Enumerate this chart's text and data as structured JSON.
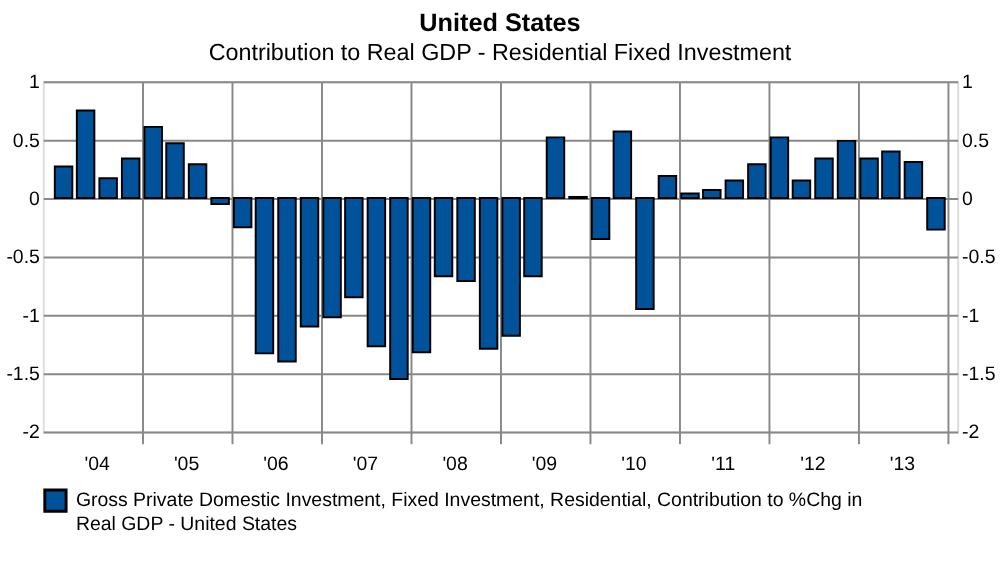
{
  "chart_data": {
    "type": "bar",
    "title": "United States",
    "subtitle": "Contribution to Real GDP - Residential Fixed Investment",
    "x": [
      "2004-02-15",
      "2004-05-15",
      "2004-08-15",
      "2004-11-15",
      "2005-02-15",
      "2005-05-15",
      "2005-08-15",
      "2005-11-15",
      "2006-02-15",
      "2006-05-15",
      "2006-08-15",
      "2006-11-15",
      "2007-02-15",
      "2007-05-15",
      "2007-08-15",
      "2007-11-15",
      "2008-02-15",
      "2008-05-15",
      "2008-08-15",
      "2008-11-15",
      "2009-02-15",
      "2009-05-15",
      "2009-08-15",
      "2009-11-15",
      "2010-02-15",
      "2010-05-15",
      "2010-08-15",
      "2010-11-15",
      "2011-02-15",
      "2011-05-15",
      "2011-08-15",
      "2011-11-15",
      "2012-02-15",
      "2012-05-15",
      "2012-08-15",
      "2012-11-15",
      "2013-02-15",
      "2013-05-15",
      "2013-08-15",
      "2013-11-15"
    ],
    "series": [
      {
        "name": "Gross Private Domestic Investment, Fixed Investment, Residential, Contribution to %Chg in Real GDP - United States",
        "color": "#00529b",
        "values": [
          0.27,
          0.75,
          0.17,
          0.34,
          0.61,
          0.47,
          0.29,
          -0.05,
          -0.25,
          -1.33,
          -1.4,
          -1.1,
          -1.02,
          -0.85,
          -1.27,
          -1.55,
          -1.32,
          -0.67,
          -0.71,
          -1.29,
          -1.18,
          -0.67,
          0.52,
          0.01,
          -0.35,
          0.57,
          -0.95,
          0.19,
          0.04,
          0.07,
          0.15,
          0.29,
          0.52,
          0.15,
          0.34,
          0.49,
          0.34,
          0.4,
          0.31,
          -0.27
        ]
      }
    ],
    "xlim": [
      "2004-01-01",
      "2014-01-01"
    ],
    "xticks": [
      {
        "value": "2004-07-01",
        "label": "'04"
      },
      {
        "value": "2005-01-01",
        "label": null
      },
      {
        "value": "2005-07-01",
        "label": "'05"
      },
      {
        "value": "2006-01-01",
        "label": null
      },
      {
        "value": "2006-07-01",
        "label": "'06"
      },
      {
        "value": "2007-01-01",
        "label": null
      },
      {
        "value": "2007-07-01",
        "label": "'07"
      },
      {
        "value": "2008-01-01",
        "label": null
      },
      {
        "value": "2008-07-01",
        "label": "'08"
      },
      {
        "value": "2009-01-01",
        "label": null
      },
      {
        "value": "2009-07-01",
        "label": "'09"
      },
      {
        "value": "2010-01-01",
        "label": null
      },
      {
        "value": "2010-07-01",
        "label": "'10"
      },
      {
        "value": "2011-01-01",
        "label": null
      },
      {
        "value": "2011-07-01",
        "label": "'11"
      },
      {
        "value": "2012-01-01",
        "label": null
      },
      {
        "value": "2012-07-01",
        "label": "'12"
      },
      {
        "value": "2013-01-01",
        "label": null
      },
      {
        "value": "2013-07-01",
        "label": "'13"
      },
      {
        "value": "2014-01-01",
        "label": null
      }
    ],
    "ylim": [
      -2,
      1
    ],
    "yticks": [
      -2,
      -1.5,
      -1,
      -0.5,
      0,
      0.5,
      1
    ],
    "y2lim": [
      -2,
      1
    ],
    "y2ticks": [
      -2,
      -1.5,
      -1,
      -0.5,
      0,
      0.5,
      1
    ],
    "grid": true,
    "legend": "bottom"
  }
}
